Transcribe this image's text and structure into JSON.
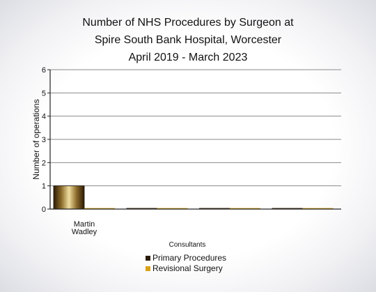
{
  "title_lines": [
    "Number of NHS Procedures by Surgeon at",
    "Spire South Bank Hospital, Worcester",
    "April 2019 - March 2023"
  ],
  "chart_data": {
    "type": "bar",
    "title": "Number of NHS Procedures by Surgeon at Spire South Bank Hospital, Worcester April 2019 - March 2023",
    "xlabel": "Consultants",
    "ylabel": "Number of operations",
    "ylim": [
      0,
      6
    ],
    "yticks": [
      0,
      1,
      2,
      3,
      4,
      5,
      6
    ],
    "grid": true,
    "legend_position": "bottom",
    "categories": [
      [
        "Martin",
        "Wadley"
      ],
      [],
      [],
      []
    ],
    "series": [
      {
        "name": "Primary Procedures",
        "values": [
          1,
          0,
          0,
          0
        ],
        "color": "#2a1d08"
      },
      {
        "name": "Revisional Surgery",
        "values": [
          0,
          0,
          0,
          0
        ],
        "color": "#d9a21b"
      }
    ]
  }
}
